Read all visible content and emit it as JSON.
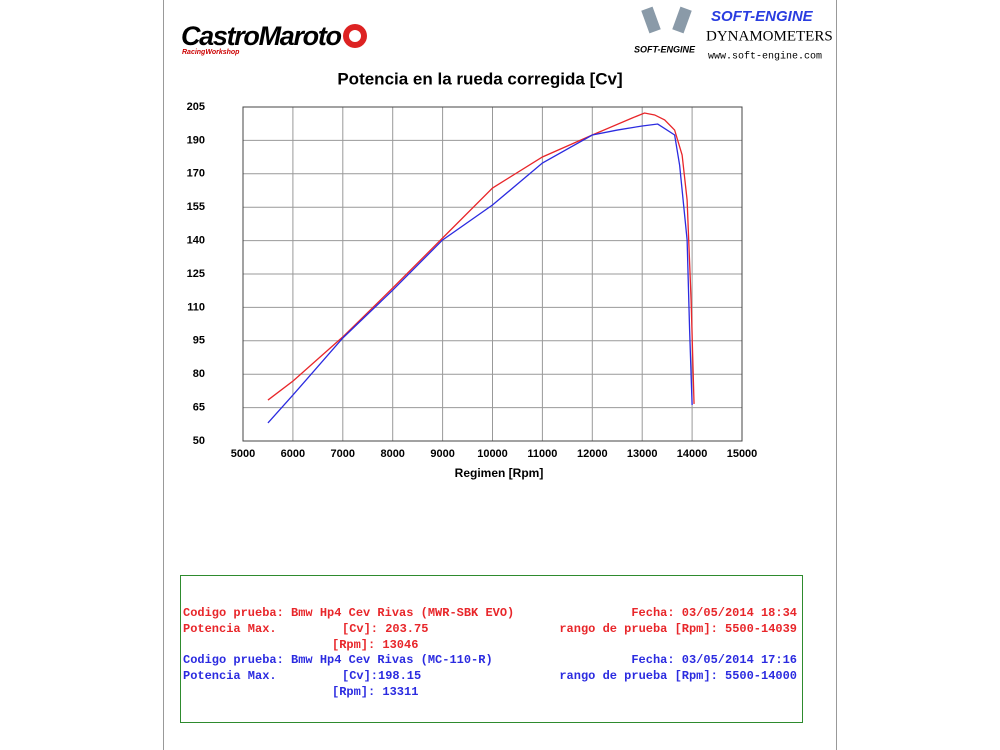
{
  "header": {
    "brand": "CastroMaroto",
    "brand_sub": "RacingWorkshop",
    "dyno_brand": "SOFT-ENGINE",
    "dyno_brand_small": "SOFT-ENGINE",
    "dyno_type": "DYNAMOMETERS",
    "dyno_url": "www.soft-engine.com"
  },
  "chart_data": {
    "type": "line",
    "title": "Potencia en la rueda corregida [Cv]",
    "x_label": "Regimen [Rpm]",
    "xlim": [
      5000,
      15000
    ],
    "xticks": [
      5000,
      6000,
      7000,
      8000,
      9000,
      10000,
      11000,
      12000,
      13000,
      14000,
      15000
    ],
    "ylim": [
      50,
      205
    ],
    "yticks": [
      50,
      {
        "value": 65.5,
        "label": "65"
      },
      {
        "value": 81,
        "label": "80"
      },
      {
        "value": 96.5,
        "label": "95"
      },
      {
        "value": 112,
        "label": "110"
      },
      {
        "value": 127.5,
        "label": "125"
      },
      {
        "value": 143,
        "label": "140"
      },
      {
        "value": 158.5,
        "label": "155"
      },
      {
        "value": 174,
        "label": "170"
      },
      {
        "value": 189.5,
        "label": "190"
      },
      205
    ],
    "grid": true,
    "series": [
      {
        "color": "#e8262a",
        "x": [
          5500,
          6000,
          7000,
          8000,
          9000,
          10000,
          11000,
          12000,
          12800,
          13046,
          13250,
          13450,
          13650,
          13800,
          13900,
          13980,
          14039
        ],
        "values": [
          69,
          77.8,
          98.3,
          121,
          144.2,
          167.4,
          181.8,
          192,
          199.9,
          202.2,
          201.3,
          199,
          194.3,
          182.7,
          161.8,
          115.4,
          67.2
        ]
      },
      {
        "color": "#2b2be0",
        "x": [
          5500,
          6000,
          7000,
          8000,
          9000,
          10000,
          11000,
          12000,
          12500,
          13000,
          13311,
          13650,
          13750,
          13900,
          13950,
          14000
        ],
        "values": [
          58.4,
          71.3,
          97.8,
          120,
          143.3,
          159.5,
          179,
          192,
          194.3,
          196.2,
          197.1,
          192,
          178,
          143.3,
          101.5,
          66.7
        ]
      }
    ]
  },
  "report": {
    "runs": [
      {
        "codigo": "Codigo prueba: Bmw Hp4 Cev Rivas (MWR-SBK EVO)",
        "fecha": "Fecha: 03/05/2014 18:34",
        "potencia": "Potencia Max.",
        "cv": "[Cv]: 203.75",
        "rango": "rango de prueba [Rpm]: 5500-14039",
        "rpm": "[Rpm]: 13046"
      },
      {
        "codigo": "Codigo prueba: Bmw Hp4 Cev Rivas (MC-110-R)",
        "fecha": "Fecha: 03/05/2014 17:16",
        "potencia": "Potencia Max.",
        "cv": "[Cv]:198.15",
        "rango": "rango de prueba [Rpm]: 5500-14000",
        "rpm": "[Rpm]: 13311"
      }
    ]
  }
}
